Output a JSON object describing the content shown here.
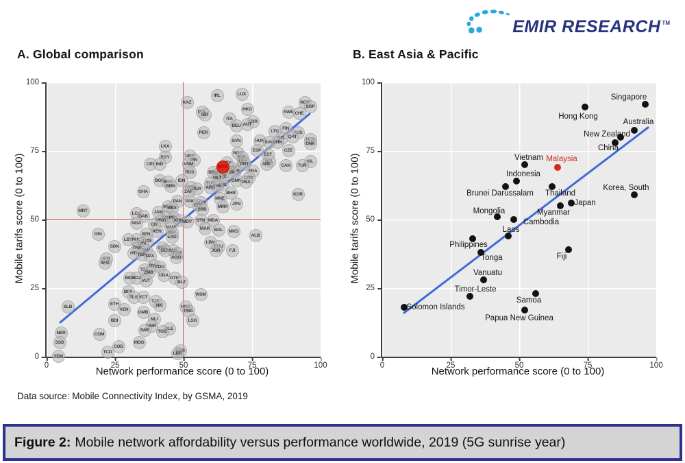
{
  "logo": {
    "text": "EMIR RESEARCH",
    "tm": "TM",
    "navy": "#28327e",
    "light_blue": "#2ba7e0"
  },
  "source_note": "Data source: Mobile Connectivity Index, by GSMA, 2019",
  "caption": {
    "prefix": "Figure 2:",
    "rest": "Mobile network affordability versus performance worldwide, 2019 (5G sunrise year)"
  },
  "chart_data": [
    {
      "type": "scatter",
      "title": "A. Global comparison",
      "xlabel": "Network performance score (0 to 100)",
      "ylabel": "Mobile tarifs score (0 to 100)",
      "xlim": [
        0,
        100
      ],
      "ylim": [
        0,
        100
      ],
      "ticks": [
        0,
        25,
        50,
        75,
        100
      ],
      "grid": true,
      "marker_style": "bubble",
      "point_color": "#bdbdbd",
      "highlight_color": "#e0281c",
      "reference_lines": {
        "x": 50,
        "y": 50,
        "color": "#dd9090"
      },
      "trend_line": {
        "x1": 5,
        "y1": 12.5,
        "x2": 96,
        "y2": 88.5,
        "color": "#3e6bd6"
      },
      "points": [
        [
          "LUX",
          71,
          96
        ],
        [
          "IRL",
          62,
          95.5
        ],
        [
          "NOR",
          94,
          93
        ],
        [
          "KAZ",
          51,
          93
        ],
        [
          "SGP",
          96,
          91.5
        ],
        [
          "HKG",
          73,
          90.5
        ],
        [
          "SWE",
          88,
          89.5
        ],
        [
          "POL",
          56.5,
          89.5
        ],
        [
          "CHE",
          92,
          89
        ],
        [
          "ISR",
          57.5,
          88.5
        ],
        [
          "ITA",
          66.5,
          87
        ],
        [
          "GBR",
          75,
          86
        ],
        [
          "AUT",
          73,
          85
        ],
        [
          "DEU",
          69,
          84.5
        ],
        [
          "FIN",
          87,
          83.5
        ],
        [
          "LTU",
          83,
          82.5
        ],
        [
          "PER",
          57,
          82
        ],
        [
          "AUS",
          91.5,
          82
        ],
        [
          "QAT",
          89.5,
          80.5
        ],
        [
          "NZL",
          85.5,
          80
        ],
        [
          "NLD",
          96,
          79.5
        ],
        [
          "SVN",
          69,
          79
        ],
        [
          "HUN",
          77.5,
          79
        ],
        [
          "SAU",
          81,
          78.5
        ],
        [
          "CHN",
          84,
          78.5
        ],
        [
          "DNK",
          96,
          78
        ],
        [
          "LKA",
          43,
          77
        ],
        [
          "ESP",
          76.5,
          75.5
        ],
        [
          "CZE",
          88,
          75.5
        ],
        [
          "ROU",
          69.5,
          74.5
        ],
        [
          "EST",
          80.5,
          74
        ],
        [
          "UKR",
          52,
          73.5
        ],
        [
          "EGY",
          43,
          73
        ],
        [
          "SVK",
          71,
          73
        ],
        [
          "IRN",
          53.5,
          72
        ],
        [
          "URY",
          71.5,
          71.5
        ],
        [
          "BEL",
          81,
          71.5
        ],
        [
          "ISL",
          96,
          71.5
        ],
        [
          "HRV",
          65.5,
          71
        ],
        [
          "CRI",
          37.5,
          70.5
        ],
        [
          "IND",
          41,
          70.5
        ],
        [
          "VNM",
          51.5,
          70.5
        ],
        [
          "PRT",
          72,
          70.5
        ],
        [
          "ARE",
          80,
          70.5
        ],
        [
          "CAN",
          87,
          70
        ],
        [
          "TUR",
          93,
          70
        ],
        [
          "MYS",
          64,
          69.5,
          "hl"
        ],
        [
          "KWT",
          67.5,
          69
        ],
        [
          "BGR",
          68.5,
          68
        ],
        [
          "FRA",
          75,
          68
        ],
        [
          "RUS",
          52,
          67.5
        ],
        [
          "BRB",
          60.5,
          67.5
        ],
        [
          "LVA",
          67,
          67.5
        ],
        [
          "BRA",
          62.5,
          67
        ],
        [
          "AZE",
          64,
          66
        ],
        [
          "MLT",
          62,
          65.5
        ],
        [
          "GRC",
          73.5,
          65.5
        ],
        [
          "OMN",
          69,
          64.5
        ],
        [
          "IDN",
          49,
          64.5
        ],
        [
          "BGD",
          41,
          64.5
        ],
        [
          "USA",
          72.5,
          64
        ],
        [
          "BHS",
          44,
          64
        ],
        [
          "TUN",
          59.5,
          63.5
        ],
        [
          "CHL",
          64,
          63
        ],
        [
          "BRN",
          45,
          62.5
        ],
        [
          "THA",
          62,
          62.5
        ],
        [
          "GEO",
          52.5,
          62
        ],
        [
          "ARG",
          59.5,
          62
        ],
        [
          "BLR",
          54.5,
          61.5
        ],
        [
          "GHA",
          35,
          60.5
        ],
        [
          "ZAF",
          51.5,
          60.5
        ],
        [
          "BHR",
          67,
          60
        ],
        [
          "KOR",
          91.5,
          59.5
        ],
        [
          "MNE",
          63,
          58
        ],
        [
          "PAN",
          47.5,
          57
        ],
        [
          "PAK",
          52,
          57
        ],
        [
          "ARM",
          56,
          56.5
        ],
        [
          "JPN",
          69,
          56
        ],
        [
          "CYP",
          55,
          55.5
        ],
        [
          "MUS",
          44,
          55
        ],
        [
          "MMR",
          64,
          55
        ],
        [
          "MEX",
          45.5,
          54.5
        ],
        [
          "SRB",
          56.5,
          54
        ],
        [
          "MRT",
          13,
          53.5
        ],
        [
          "JAM",
          40.5,
          53
        ],
        [
          "LCA",
          32.5,
          52.5
        ],
        [
          "GAB",
          35,
          51.5
        ],
        [
          "DOM",
          43.5,
          51
        ],
        [
          "PRY",
          46,
          51
        ],
        [
          "MNG",
          41.5,
          50
        ],
        [
          "KHM",
          48,
          50
        ],
        [
          "BTN",
          56,
          50
        ],
        [
          "MDA",
          60.5,
          50
        ],
        [
          "MDV",
          51,
          49.5
        ],
        [
          "NGA",
          32.5,
          49
        ],
        [
          "CIV",
          39,
          48.5
        ],
        [
          "NAM",
          45,
          47.5
        ],
        [
          "MAR",
          57.5,
          47
        ],
        [
          "BOL",
          62.5,
          46.5
        ],
        [
          "KEN",
          40,
          46
        ],
        [
          "MKD",
          68,
          46
        ],
        [
          "BIH",
          45.5,
          45.5
        ],
        [
          "GIN",
          18.5,
          45
        ],
        [
          "SEN",
          36,
          45
        ],
        [
          "ALB",
          76,
          44.5
        ],
        [
          "LAO",
          45.5,
          44
        ],
        [
          "LBY",
          29.5,
          43
        ],
        [
          "PHL",
          32.5,
          43
        ],
        [
          "UZB",
          36.5,
          42.5
        ],
        [
          "LBN",
          59.5,
          42
        ],
        [
          "CPV",
          34.5,
          41.5
        ],
        [
          "SDN",
          24.5,
          40.5
        ],
        [
          "ECU",
          62.5,
          40.5
        ],
        [
          "BWA",
          33,
          40
        ],
        [
          "SWZ",
          42,
          40
        ],
        [
          "GUY",
          43,
          39
        ],
        [
          "SUR",
          46,
          39
        ],
        [
          "SLV",
          36,
          39
        ],
        [
          "JOR",
          61.5,
          39
        ],
        [
          "FJI",
          67.5,
          39
        ],
        [
          "HTI",
          31.5,
          38
        ],
        [
          "KGZ",
          47.5,
          38
        ],
        [
          "TON",
          34.5,
          37.5
        ],
        [
          "DZA",
          37.5,
          37
        ],
        [
          "AGO",
          47,
          36.5
        ],
        [
          "IRQ",
          21.5,
          36
        ],
        [
          "AFG",
          21,
          34.5
        ],
        [
          "RWA",
          39,
          33.5
        ],
        [
          "COG",
          41,
          33
        ],
        [
          "TZA",
          35.5,
          32
        ],
        [
          "ZMB",
          37,
          31
        ],
        [
          "UGA",
          42.5,
          30
        ],
        [
          "BEN",
          30,
          29
        ],
        [
          "MOZ",
          32.5,
          29
        ],
        [
          "GTM",
          46.5,
          29
        ],
        [
          "VUT",
          36,
          28
        ],
        [
          "BLZ",
          49,
          27.5
        ],
        [
          "BFA",
          29.5,
          24
        ],
        [
          "WSM",
          56,
          23
        ],
        [
          "TLS",
          31.5,
          22
        ],
        [
          "VCT",
          35,
          22
        ],
        [
          "TJK",
          39.5,
          20.5
        ],
        [
          "ETH",
          24.5,
          19.5
        ],
        [
          "NIC",
          41,
          19
        ],
        [
          "SLB",
          7.5,
          18.5
        ],
        [
          "HND",
          50.5,
          18.5
        ],
        [
          "VEN",
          28,
          17.5
        ],
        [
          "PNG",
          51.5,
          17
        ],
        [
          "GMB",
          35,
          16.5
        ],
        [
          "MLI",
          39,
          14
        ],
        [
          "BDI",
          24.5,
          13.5
        ],
        [
          "LSO",
          53,
          13.5
        ],
        [
          "MWI",
          38,
          11.5
        ],
        [
          "ZWE",
          35.5,
          10
        ],
        [
          "SLE",
          44.5,
          10.5
        ],
        [
          "TGO",
          42,
          9.5
        ],
        [
          "NER",
          5,
          9
        ],
        [
          "COM",
          19,
          8.5
        ],
        [
          "SSD",
          4.5,
          5.5
        ],
        [
          "MDG",
          33.5,
          5.5
        ],
        [
          "COD",
          26,
          4
        ],
        [
          "GNB",
          48.5,
          2.5
        ],
        [
          "TCD",
          22,
          2
        ],
        [
          "LBR",
          47.5,
          1.5
        ],
        [
          "YEM",
          4,
          0.5
        ]
      ]
    },
    {
      "type": "scatter",
      "title": "B. East Asia & Pacific",
      "xlabel": "Network performance score (0 to 100)",
      "ylabel": "Mobile tarifs score (0 to 100)",
      "xlim": [
        0,
        100
      ],
      "ylim": [
        0,
        100
      ],
      "ticks": [
        0,
        25,
        50,
        75,
        100
      ],
      "grid": true,
      "marker_style": "dot",
      "point_color": "#121212",
      "highlight_color": "#d4271e",
      "trend_line": {
        "x1": 8,
        "y1": 16,
        "x2": 97,
        "y2": 83.5,
        "color": "#3e6bd6"
      },
      "points": [
        {
          "label": "Singapore",
          "x": 96,
          "y": 92,
          "lx": 90,
          "ly": 94.5
        },
        {
          "label": "Hong Kong",
          "x": 74,
          "y": 91,
          "lx": 71.5,
          "ly": 87.5
        },
        {
          "label": "Australia",
          "x": 92,
          "y": 82.5,
          "lx": 93.5,
          "ly": 85.5
        },
        {
          "label": "New Zealand",
          "x": 87,
          "y": 80,
          "lx": 82,
          "ly": 81
        },
        {
          "label": "China",
          "x": 85,
          "y": 78,
          "lx": 82.5,
          "ly": 76
        },
        {
          "label": "Vietnam",
          "x": 52,
          "y": 70,
          "lx": 53.5,
          "ly": 72.5
        },
        {
          "label": "Malaysia",
          "x": 64,
          "y": 69,
          "lx": 65.5,
          "ly": 72,
          "color": "#d4271e"
        },
        {
          "label": "Indonesia",
          "x": 49,
          "y": 64,
          "lx": 51.5,
          "ly": 66.5
        },
        {
          "label": "Brunei Darussalam",
          "x": 45,
          "y": 62,
          "lx": 43,
          "ly": 59.5
        },
        {
          "label": "Thailand",
          "x": 62,
          "y": 62,
          "lx": 65,
          "ly": 59.5
        },
        {
          "label": "Korea, South",
          "x": 92,
          "y": 59,
          "lx": 89,
          "ly": 61.5
        },
        {
          "label": "Japan",
          "x": 69,
          "y": 56,
          "lx": 74,
          "ly": 56
        },
        {
          "label": "Myanmar",
          "x": 65,
          "y": 55,
          "lx": 62.5,
          "ly": 52.5
        },
        {
          "label": "Mongolia",
          "x": 42,
          "y": 51,
          "lx": 39,
          "ly": 53
        },
        {
          "label": "Cambodia",
          "x": 48,
          "y": 50,
          "lx": 58,
          "ly": 49
        },
        {
          "label": "Laos",
          "x": 46,
          "y": 44,
          "lx": 47,
          "ly": 46.3
        },
        {
          "label": "Philippines",
          "x": 33,
          "y": 43,
          "lx": 31.5,
          "ly": 40.8
        },
        {
          "label": "Tonga",
          "x": 36,
          "y": 38,
          "lx": 40,
          "ly": 36
        },
        {
          "label": "Fiji",
          "x": 68,
          "y": 39,
          "lx": 65.5,
          "ly": 36.5
        },
        {
          "label": "Vanuatu",
          "x": 37,
          "y": 28,
          "lx": 38.5,
          "ly": 30.5
        },
        {
          "label": "Timor-Leste",
          "x": 32,
          "y": 22,
          "lx": 34,
          "ly": 24.5
        },
        {
          "label": "Samoa",
          "x": 56,
          "y": 23,
          "lx": 53.5,
          "ly": 20.5
        },
        {
          "label": "Solomon Islands",
          "x": 8,
          "y": 18,
          "lx": 19.5,
          "ly": 18
        },
        {
          "label": "Papua New Guinea",
          "x": 52,
          "y": 17,
          "lx": 50,
          "ly": 14
        }
      ]
    }
  ]
}
